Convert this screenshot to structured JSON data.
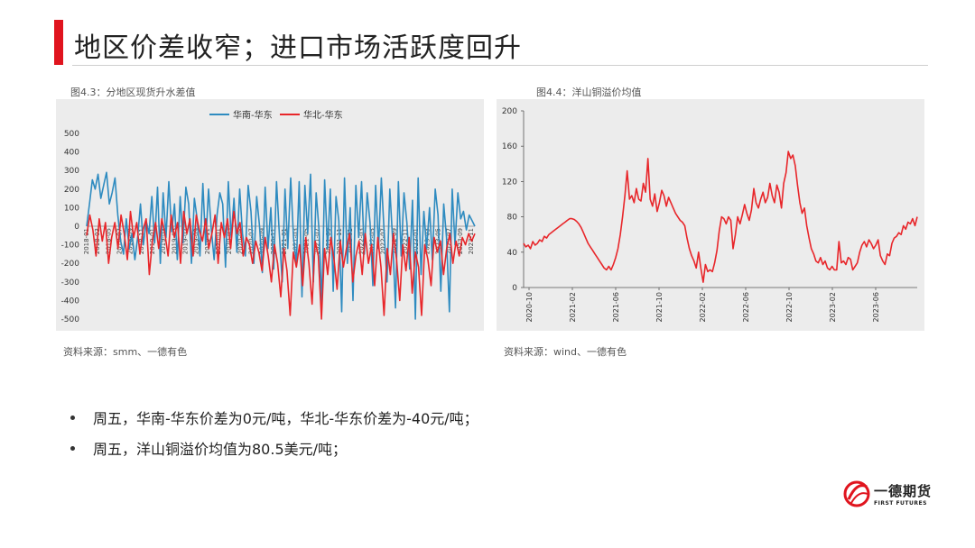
{
  "page": {
    "title": "地区价差收窄；进口市场活跃度回升"
  },
  "left_figure": {
    "caption": "图4.3：分地区现货升水差值",
    "source": "资料来源：smm、一德有色"
  },
  "right_figure": {
    "caption": "图4.4：洋山铜溢价均值",
    "source": "资料来源：wind、一德有色"
  },
  "bullets": [
    "周五，华南-华东价差为0元/吨，华北-华东价差为-40元/吨；",
    "周五，洋山铜溢价均值为80.5美元/吨；"
  ],
  "logo": {
    "cn": "一德期货",
    "en": "FIRST FUTURES"
  },
  "colors": {
    "accent": "#e0141e",
    "series_blue": "#2e8bc0",
    "series_red": "#e8262a"
  },
  "chart_data": [
    {
      "type": "line",
      "series": [
        {
          "name": "华南-华东",
          "color": "#2e8bc0",
          "values": [
            0,
            120,
            250,
            200,
            280,
            150,
            220,
            290,
            120,
            180,
            260,
            60,
            -80,
            -150,
            40,
            -120,
            -40,
            -180,
            -60,
            120,
            -100,
            30,
            -40,
            160,
            -90,
            210,
            -200,
            180,
            -60,
            240,
            -30,
            120,
            -180,
            160,
            -90,
            210,
            120,
            -200,
            150,
            40,
            -160,
            230,
            -100,
            200,
            -20,
            -180,
            60,
            180,
            120,
            -220,
            240,
            -60,
            150,
            -140,
            200,
            -40,
            -160,
            220,
            80,
            -200,
            160,
            0,
            -250,
            210,
            -120,
            100,
            -230,
            240,
            -40,
            -300,
            200,
            -120,
            260,
            -60,
            -200,
            240,
            -380,
            220,
            -40,
            280,
            -300,
            180,
            -20,
            -420,
            250,
            -120,
            200,
            -350,
            160,
            30,
            -460,
            260,
            -200,
            100,
            -400,
            220,
            -60,
            240,
            -150,
            180,
            20,
            -320,
            220,
            -120,
            260,
            -40,
            -300,
            200,
            -80,
            -440,
            240,
            -160,
            180,
            20,
            -230,
            140,
            -500,
            260,
            -260,
            80,
            -120,
            100,
            -180,
            200,
            60,
            -350,
            120,
            -60,
            -460,
            200,
            -100,
            180,
            40,
            80,
            -20,
            60,
            30,
            0
          ]
        },
        {
          "name": "华北-华东",
          "color": "#e8262a",
          "values": [
            -50,
            60,
            -20,
            -160,
            40,
            -80,
            20,
            -200,
            -60,
            20,
            -120,
            60,
            -40,
            -180,
            80,
            -60,
            20,
            -150,
            -20,
            40,
            -260,
            -80,
            20,
            -120,
            40,
            -40,
            -160,
            60,
            -60,
            20,
            -200,
            80,
            -40,
            40,
            -160,
            60,
            -20,
            -80,
            40,
            -120,
            -40,
            60,
            -200,
            20,
            -60,
            40,
            -120,
            80,
            -40,
            20,
            -160,
            -60,
            -100,
            -200,
            -80,
            -140,
            -240,
            -60,
            -160,
            -300,
            -100,
            -200,
            -380,
            -120,
            -240,
            -480,
            -140,
            -220,
            -100,
            -320,
            -60,
            -200,
            -420,
            -80,
            -160,
            -500,
            -120,
            -260,
            -60,
            -180,
            -340,
            -80,
            -220,
            -120,
            -40,
            -300,
            -160,
            -80,
            -260,
            -40,
            -200,
            -100,
            -320,
            -60,
            -220,
            -480,
            -120,
            -260,
            -40,
            -180,
            -400,
            -100,
            -240,
            -60,
            -360,
            -140,
            -220,
            -480,
            -100,
            -180,
            -320,
            -60,
            -140,
            -80,
            -260,
            -120,
            -40,
            -200,
            -80,
            -160,
            -60,
            -100,
            -40,
            -80,
            -40
          ]
        }
      ],
      "x_tick_labels": [
        "2018-01",
        "2018-03",
        "2018-05",
        "2018-07",
        "2018-09",
        "2018-11",
        "2019-01",
        "2019-03",
        "2019-05",
        "2019-07",
        "2019-09",
        "2019-11",
        "2020-01",
        "2020-03",
        "2020-05",
        "2020-07",
        "2020-09",
        "2020-11",
        "2021-01",
        "2021-03",
        "2021-05",
        "2021-07",
        "2021-09",
        "2021-11",
        "2022-01",
        "2022-03",
        "2022-05",
        "2022-07",
        "2022-09",
        "2022-11",
        "2023-01",
        "2023-03",
        "2023-05",
        "2023-07",
        "2023-09",
        "2023-11"
      ],
      "y_ticks": [
        500,
        400,
        300,
        200,
        100,
        0,
        -100,
        -200,
        -300,
        -400,
        -500
      ],
      "ylim": [
        -500,
        500
      ],
      "legend_position": "top"
    },
    {
      "type": "line",
      "color": "#e8262a",
      "values": [
        50,
        46,
        48,
        44,
        52,
        48,
        50,
        54,
        52,
        58,
        56,
        60,
        62,
        64,
        66,
        68,
        70,
        72,
        74,
        76,
        78,
        78,
        77,
        75,
        72,
        68,
        62,
        56,
        50,
        46,
        42,
        38,
        34,
        30,
        26,
        22,
        20,
        24,
        20,
        26,
        34,
        44,
        60,
        80,
        104,
        132,
        100,
        104,
        96,
        112,
        100,
        98,
        118,
        108,
        146,
        100,
        92,
        106,
        86,
        96,
        110,
        104,
        92,
        102,
        96,
        90,
        84,
        80,
        76,
        74,
        70,
        56,
        44,
        36,
        30,
        22,
        40,
        22,
        6,
        26,
        18,
        20,
        18,
        28,
        42,
        64,
        80,
        78,
        72,
        80,
        76,
        44,
        60,
        80,
        72,
        82,
        94,
        84,
        76,
        88,
        112,
        96,
        90,
        100,
        108,
        96,
        102,
        118,
        104,
        96,
        116,
        108,
        90,
        118,
        130,
        154,
        146,
        150,
        138,
        116,
        96,
        84,
        90,
        70,
        56,
        44,
        38,
        30,
        28,
        34,
        26,
        30,
        22,
        20,
        24,
        20,
        20,
        52,
        28,
        30,
        26,
        34,
        32,
        20,
        24,
        28,
        40,
        48,
        52,
        46,
        54,
        50,
        44,
        48,
        54,
        36,
        30,
        26,
        38,
        36,
        50,
        56,
        58,
        62,
        60,
        70,
        66,
        74,
        72,
        78,
        70,
        80
      ],
      "x_tick_labels": [
        "2020-10",
        "2021-02",
        "2021-06",
        "2021-10",
        "2022-02",
        "2022-06",
        "2022-10",
        "2023-02",
        "2023-06"
      ],
      "y_ticks": [
        200,
        160,
        120,
        80,
        40,
        0
      ],
      "ylim": [
        0,
        200
      ]
    }
  ]
}
